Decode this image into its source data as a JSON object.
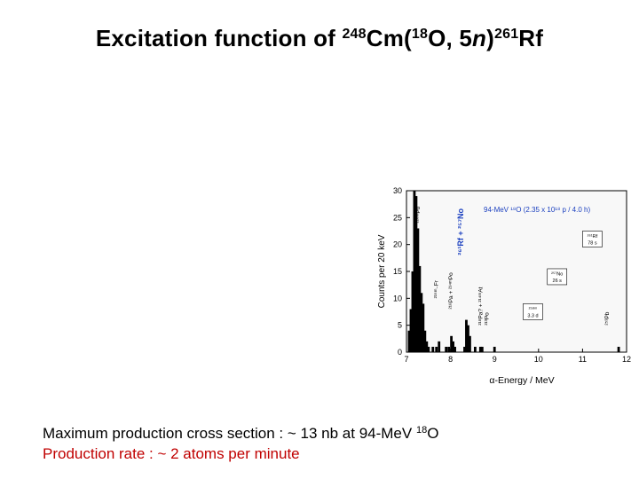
{
  "title": {
    "prefix": "Excitation function of ",
    "target_mass": "248",
    "target_sym": "Cm(",
    "proj_mass": "18",
    "proj_sym": "O, 5",
    "neutron": "n",
    "close": ")",
    "product_mass": "261",
    "product_sym": "Rf"
  },
  "chart_data": {
    "type": "bar",
    "xlabel": "α-Energy / MeV",
    "ylabel": "Counts per 20 keV",
    "xlim": [
      7,
      12
    ],
    "ylim": [
      0,
      30
    ],
    "x_ticks": [
      7,
      8,
      9,
      10,
      11,
      12
    ],
    "y_ticks": [
      0,
      5,
      10,
      15,
      20,
      25,
      30
    ],
    "legend": "94-MeV ¹⁸O (2.35 x 10¹⁸ p / 4.0 h)",
    "bars": [
      {
        "x": 7.06,
        "y": 4
      },
      {
        "x": 7.1,
        "y": 8
      },
      {
        "x": 7.14,
        "y": 15
      },
      {
        "x": 7.18,
        "y": 30
      },
      {
        "x": 7.22,
        "y": 29
      },
      {
        "x": 7.26,
        "y": 23
      },
      {
        "x": 7.3,
        "y": 16
      },
      {
        "x": 7.34,
        "y": 11
      },
      {
        "x": 7.38,
        "y": 9
      },
      {
        "x": 7.42,
        "y": 4
      },
      {
        "x": 7.46,
        "y": 2
      },
      {
        "x": 7.5,
        "y": 1
      },
      {
        "x": 7.6,
        "y": 1
      },
      {
        "x": 7.68,
        "y": 1
      },
      {
        "x": 7.74,
        "y": 2
      },
      {
        "x": 7.9,
        "y": 1
      },
      {
        "x": 7.96,
        "y": 1
      },
      {
        "x": 8.02,
        "y": 3
      },
      {
        "x": 8.06,
        "y": 2
      },
      {
        "x": 8.1,
        "y": 1
      },
      {
        "x": 8.32,
        "y": 1
      },
      {
        "x": 8.36,
        "y": 6
      },
      {
        "x": 8.4,
        "y": 5
      },
      {
        "x": 8.44,
        "y": 3
      },
      {
        "x": 8.56,
        "y": 1
      },
      {
        "x": 8.68,
        "y": 1
      },
      {
        "x": 8.72,
        "y": 1
      },
      {
        "x": 9.0,
        "y": 1
      },
      {
        "x": 11.82,
        "y": 1
      }
    ],
    "annotations": [
      {
        "label": "²¹⁶ᵐPo",
        "x": 7.3,
        "y": 24
      },
      {
        "label": "²⁶¹Rf + ²⁵⁷No",
        "x": 8.29,
        "y": 18
      },
      {
        "label": "²¹⁵ᵐ₋Fr",
        "x": 7.72,
        "y": 10
      },
      {
        "label": "²¹⁸Pa + ²¹⁴ᵐPo",
        "x": 8.05,
        "y": 8
      },
      {
        "label": "²¹⁸Pa? + ²¹⁴ᵐAt",
        "x": 8.72,
        "y": 5
      },
      {
        "label": "²¹³Po",
        "x": 8.86,
        "y": 5
      },
      {
        "label": "²⁵³Pb",
        "x": 11.6,
        "y": 5
      }
    ],
    "boxes": [
      {
        "line1": "²⁶¹Rf",
        "line2": "78 s",
        "x": 11.0,
        "y": 22.5
      },
      {
        "line1": "²⁵⁷No",
        "line2": "26 s",
        "x": 10.2,
        "y": 15.5
      },
      {
        "line1": "²⁵⁸ᵐ",
        "line2": "3.3 d",
        "x": 9.65,
        "y": 9
      }
    ]
  },
  "caption": {
    "line1_text": "Maximum production cross section : ~ 13 nb at 94-MeV ",
    "line1_sup": "18",
    "line1_tail": "O",
    "line2_text": "Production rate : ~ 2 atoms per minute"
  }
}
